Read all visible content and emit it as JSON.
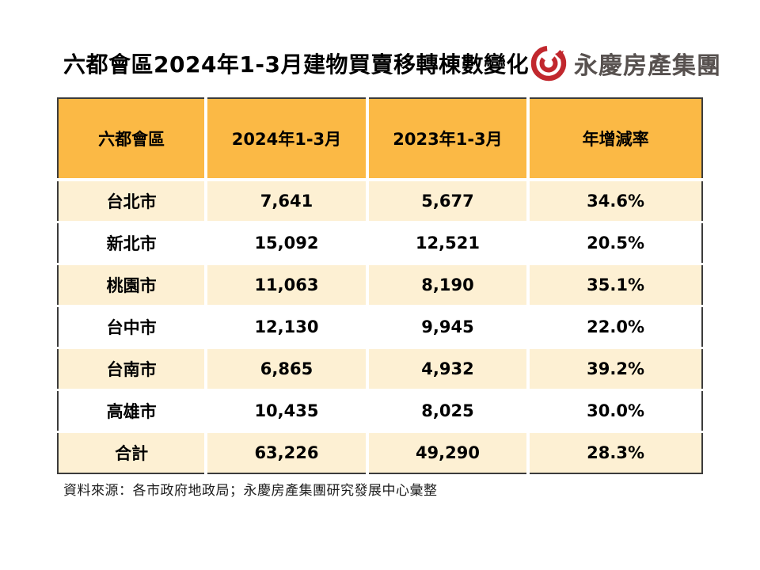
{
  "title": "六都會區2024年1-3月建物買賣移轉棟數變化",
  "logo": {
    "company": "永慶房產集團",
    "icon": "yungching-swirl-icon",
    "icon_color": "#c1272d",
    "text_color": "#57514f"
  },
  "colors": {
    "header_bg": "#fbb945",
    "stripe_bg": "#fdf0d3",
    "table_border": "#3b3b3b",
    "text": "#000000"
  },
  "chart_data": {
    "type": "table",
    "title": "六都會區2024年1-3月建物買賣移轉棟數變化",
    "columns": [
      "六都會區",
      "2024年1-3月",
      "2023年1-3月",
      "年增減率"
    ],
    "rows": [
      {
        "region": "台北市",
        "y2024": "7,641",
        "y2023": "5,677",
        "yoy": "34.6%"
      },
      {
        "region": "新北市",
        "y2024": "15,092",
        "y2023": "12,521",
        "yoy": "20.5%"
      },
      {
        "region": "桃園市",
        "y2024": "11,063",
        "y2023": "8,190",
        "yoy": "35.1%"
      },
      {
        "region": "台中市",
        "y2024": "12,130",
        "y2023": "9,945",
        "yoy": "22.0%"
      },
      {
        "region": "台南市",
        "y2024": "6,865",
        "y2023": "4,932",
        "yoy": "39.2%"
      },
      {
        "region": "高雄市",
        "y2024": "10,435",
        "y2023": "8,025",
        "yoy": "30.0%"
      },
      {
        "region": "合計",
        "y2024": "63,226",
        "y2023": "49,290",
        "yoy": "28.3%"
      }
    ]
  },
  "footer": {
    "source": "資料來源：各市政府地政局；永慶房產集團研究發展中心彙整"
  }
}
